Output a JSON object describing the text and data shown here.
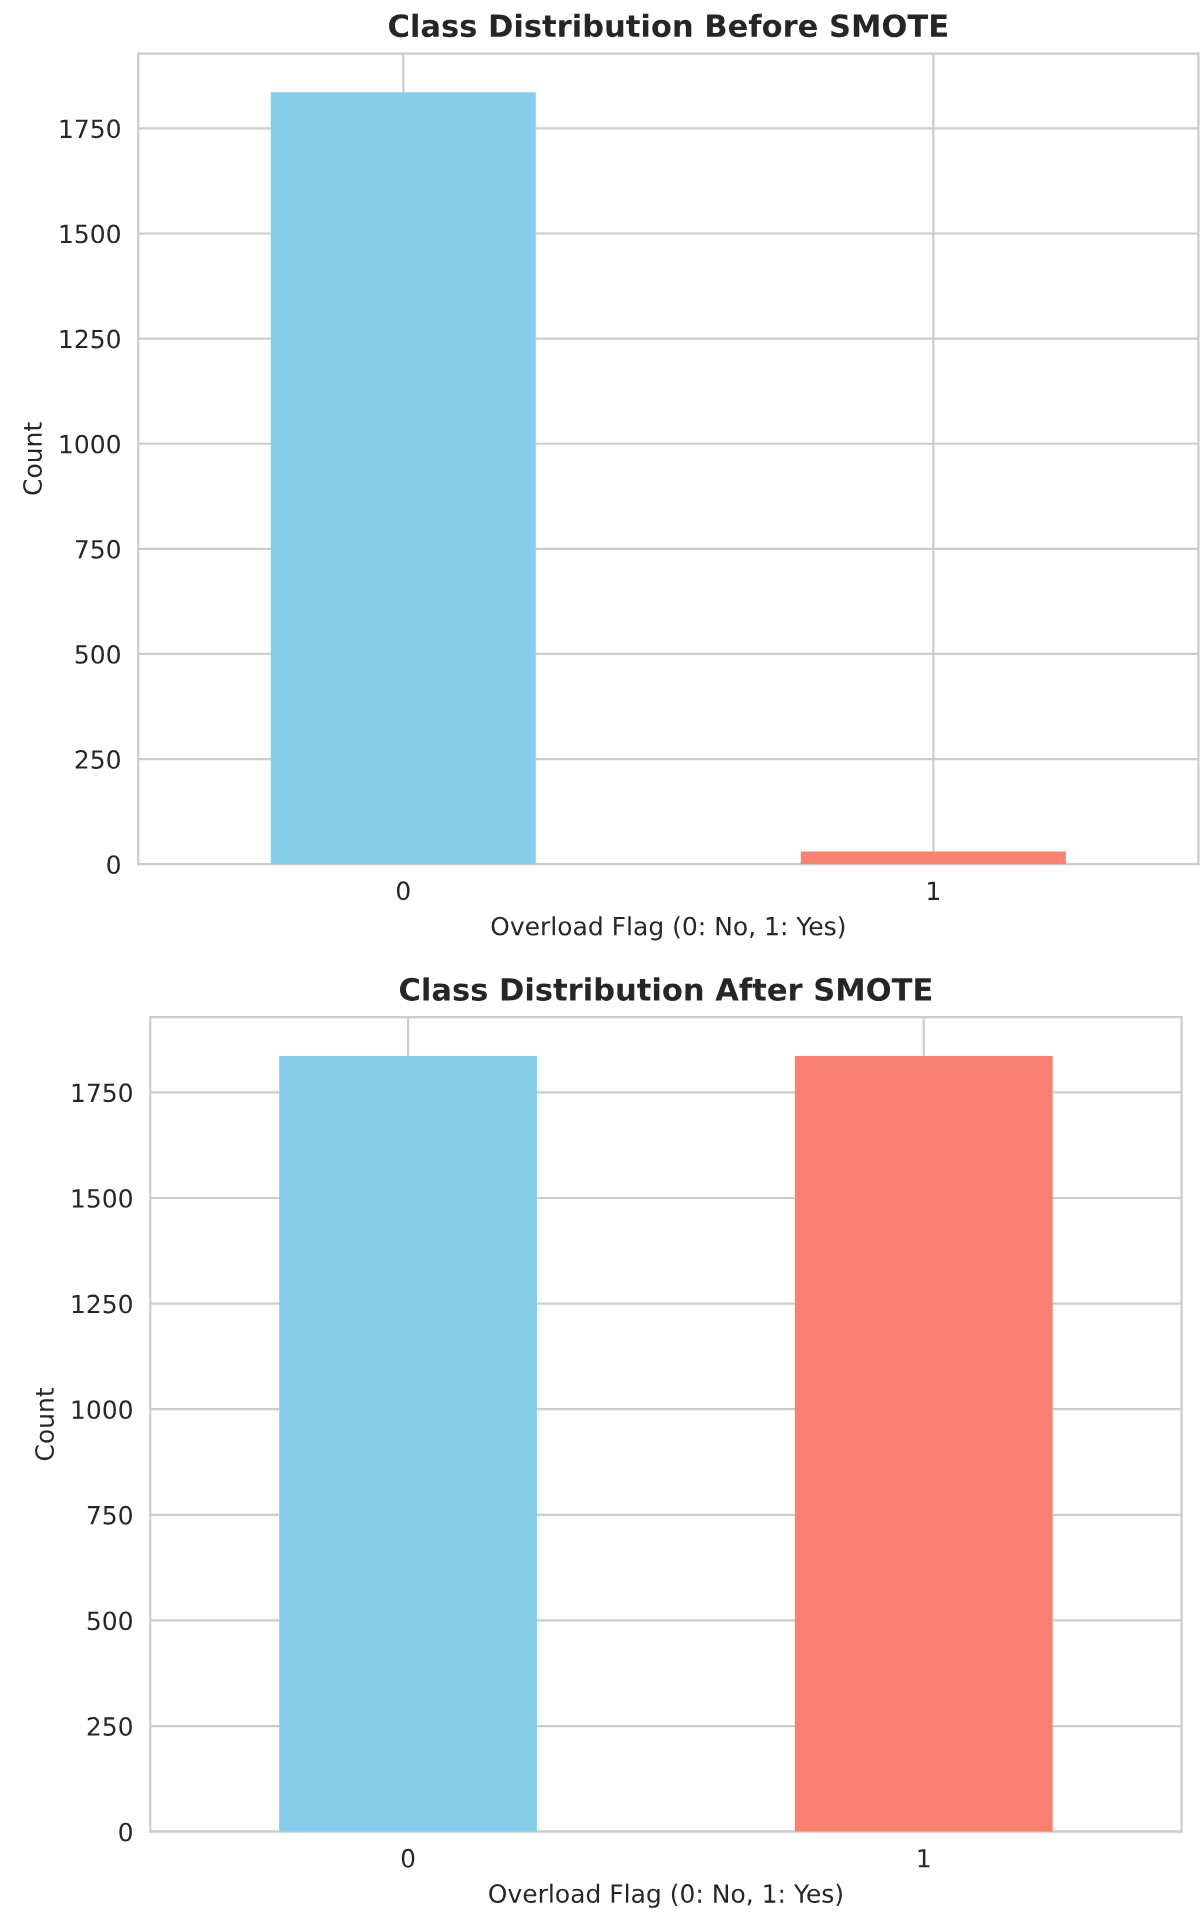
{
  "chart_data": [
    {
      "type": "bar",
      "title": "Class Distribution Before SMOTE",
      "xlabel": "Overload Flag (0: No, 1: Yes)",
      "ylabel": "Count",
      "categories": [
        "0",
        "1"
      ],
      "values": [
        1836,
        30
      ],
      "colors": [
        "#87ceeb",
        "#fa8072"
      ],
      "ylim": [
        0,
        1928
      ],
      "yticks": [
        0,
        250,
        500,
        750,
        1000,
        1250,
        1500,
        1750
      ],
      "grid": true
    },
    {
      "type": "bar",
      "title": "Class Distribution After SMOTE",
      "xlabel": "Overload Flag (0: No, 1: Yes)",
      "ylabel": "Count",
      "categories": [
        "0",
        "1"
      ],
      "values": [
        1836,
        1836
      ],
      "colors": [
        "#87ceeb",
        "#fa8072"
      ],
      "ylim": [
        0,
        1928
      ],
      "yticks": [
        0,
        250,
        500,
        750,
        1000,
        1250,
        1500,
        1750
      ],
      "grid": true
    }
  ]
}
